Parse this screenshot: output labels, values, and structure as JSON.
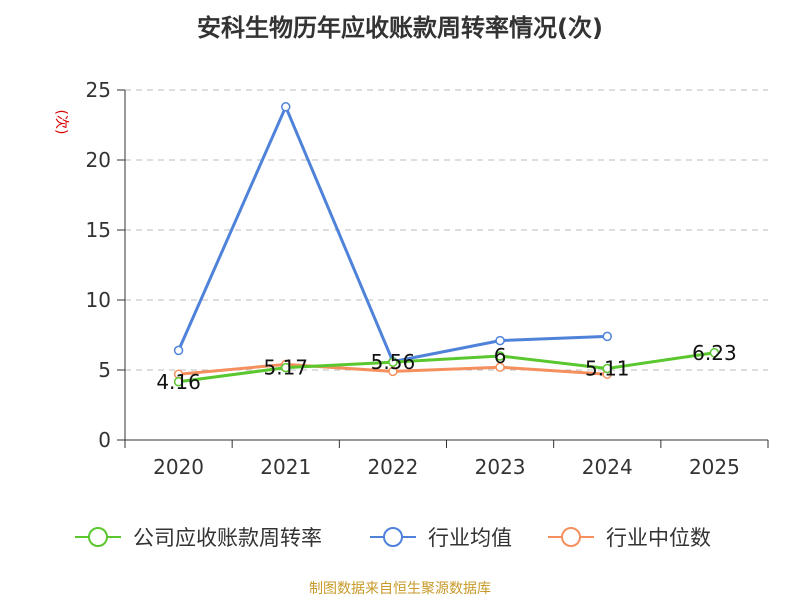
{
  "chart_data": {
    "type": "line",
    "title": "安科生物历年应收账款周转率情况(次)",
    "ylabel": "(次)",
    "xlabel": "",
    "categories": [
      "2020",
      "2021",
      "2022",
      "2023",
      "2024",
      "2025"
    ],
    "yticks": [
      0,
      5,
      10,
      15,
      20,
      25
    ],
    "ylim": [
      0,
      25
    ],
    "grid": true,
    "legend_position": "bottom",
    "series": [
      {
        "name": "公司应收账款周转率",
        "color": "#5ac72f",
        "values": [
          4.16,
          5.17,
          5.56,
          6,
          5.11,
          6.23
        ],
        "data_labels": [
          "4.16",
          "5.17",
          "5.56",
          "6",
          "5.11",
          "6.23"
        ]
      },
      {
        "name": "行业均值",
        "color": "#4f82d9",
        "values": [
          6.4,
          23.8,
          5.6,
          7.1,
          7.4,
          null
        ]
      },
      {
        "name": "行业中位数",
        "color": "#f5905e",
        "values": [
          4.7,
          5.4,
          4.9,
          5.2,
          4.7,
          null
        ]
      }
    ]
  },
  "source": "制图数据来自恒生聚源数据库"
}
